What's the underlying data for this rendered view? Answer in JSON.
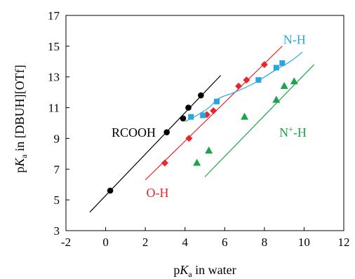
{
  "chart_data": {
    "type": "scatter",
    "xlim": [
      -2,
      12
    ],
    "ylim": [
      3,
      17
    ],
    "xticks": [
      -2,
      0,
      2,
      4,
      6,
      8,
      10,
      12
    ],
    "yticks": [
      3,
      5,
      7,
      9,
      11,
      13,
      15,
      17
    ],
    "xtick_labels": [
      "-2",
      "0",
      "2",
      "4",
      "6",
      "8",
      "10",
      "12"
    ],
    "ytick_labels": [
      "3",
      "5",
      "7",
      "9",
      "11",
      "13",
      "15",
      "17"
    ],
    "xlabel": {
      "prefix": "p",
      "italic": "K",
      "sub": "a",
      "suffix": " in water"
    },
    "ylabel": {
      "prefix": "p",
      "italic": "K",
      "sub": "a",
      "suffix": " in [DBUH][OTf]"
    },
    "grid": false,
    "legend": "none",
    "series": [
      {
        "name": "RCOOH",
        "color": "#000000",
        "marker": "circle",
        "x": [
          0.23,
          3.08,
          3.9,
          4.17,
          4.8
        ],
        "y": [
          5.6,
          9.4,
          10.3,
          11.0,
          11.8
        ],
        "fit": {
          "type": "linear",
          "x": [
            -0.8,
            5.8
          ],
          "y": [
            4.2,
            13.1
          ]
        },
        "label": {
          "parts": [
            {
              "t": "RCOOH"
            }
          ],
          "x": 0.3,
          "y": 9.1
        }
      },
      {
        "name": "O-H",
        "color": "#e8262b",
        "marker": "diamond",
        "x": [
          2.98,
          4.2,
          5.1,
          5.43,
          6.7,
          7.1,
          8.0
        ],
        "y": [
          7.4,
          9.0,
          10.55,
          10.8,
          12.4,
          12.8,
          13.8
        ],
        "fit": {
          "type": "linear",
          "x": [
            2.0,
            8.9
          ],
          "y": [
            6.3,
            15.0
          ]
        },
        "label": {
          "parts": [
            {
              "t": "O-H"
            }
          ],
          "x": 2.05,
          "y": 5.2
        }
      },
      {
        "name": "N-H",
        "color": "#29a6de",
        "marker": "square",
        "x": [
          4.3,
          4.9,
          5.6,
          7.7,
          8.6,
          8.9
        ],
        "y": [
          10.4,
          10.5,
          11.4,
          12.8,
          13.6,
          13.9
        ],
        "fit": {
          "type": "smooth",
          "x": [
            4.0,
            4.6,
            5.2,
            5.7,
            6.5,
            7.5,
            8.5,
            9.3,
            9.9
          ],
          "y": [
            10.1,
            10.5,
            11.0,
            11.6,
            12.0,
            12.6,
            13.4,
            14.0,
            14.6
          ]
        },
        "label": {
          "parts": [
            {
              "t": "N-H"
            }
          ],
          "x": 8.95,
          "y": 15.15
        }
      },
      {
        "name": "N+-H",
        "color": "#1aa54a",
        "marker": "triangle",
        "x": [
          4.6,
          5.2,
          7.0,
          8.6,
          9.0,
          9.5
        ],
        "y": [
          7.4,
          8.2,
          10.4,
          11.5,
          12.4,
          12.7
        ],
        "fit": {
          "type": "linear",
          "x": [
            5.0,
            10.5
          ],
          "y": [
            6.5,
            13.8
          ]
        },
        "label": {
          "parts": [
            {
              "t": "N"
            },
            {
              "t": "+",
              "sup": true
            },
            {
              "t": "-H"
            }
          ],
          "x": 8.75,
          "y": 9.1
        }
      }
    ]
  }
}
